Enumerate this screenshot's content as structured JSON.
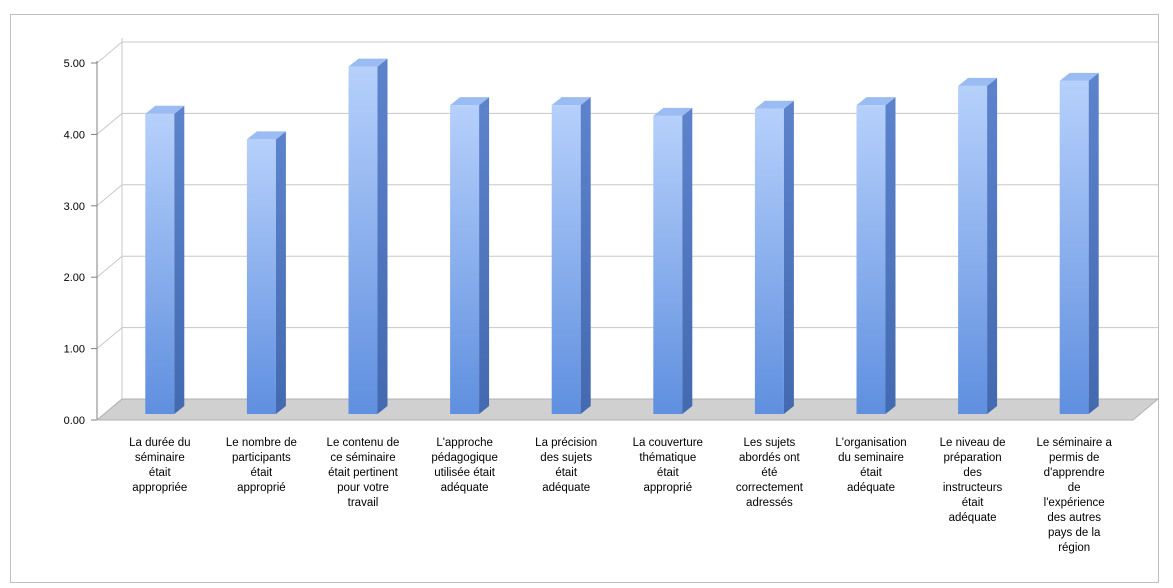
{
  "chart_data": {
    "type": "bar",
    "categories": [
      [
        "La durée du",
        "séminaire",
        "était",
        "appropriée"
      ],
      [
        "Le nombre de",
        "participants",
        "était",
        "approprié"
      ],
      [
        "Le contenu de",
        "ce séminaire",
        "était pertinent",
        "pour votre",
        "travail"
      ],
      [
        "L'approche",
        "pédagogique",
        "utilisée était",
        "adéquate"
      ],
      [
        "La précision",
        "des sujets",
        "était",
        "adéquate"
      ],
      [
        "La couverture",
        "thématique",
        "était",
        "approprié"
      ],
      [
        "Les sujets",
        "abordés ont",
        "été",
        "correctement",
        "adressés"
      ],
      [
        "L'organisation",
        "du seminaire",
        "était",
        "adéquate"
      ],
      [
        "Le niveau de",
        "préparation",
        "des",
        "instructeurs",
        "était",
        "adéquate"
      ],
      [
        "Le séminaire a",
        "permis de",
        "d'apprendre",
        "de",
        "l'expérience",
        "des autres",
        "pays de la",
        "région"
      ]
    ],
    "values": [
      4.29,
      3.93,
      4.95,
      4.41,
      4.41,
      4.26,
      4.36,
      4.41,
      4.68,
      4.75
    ],
    "ylim": [
      0,
      5
    ],
    "yticks": [
      "0.00",
      "1.00",
      "2.00",
      "3.00",
      "4.00",
      "5.00"
    ],
    "grid": true,
    "bar_style": "3d",
    "colors": {
      "bar_front_top": "#b6d0fb",
      "bar_front_bottom": "#5f8fdf",
      "bar_side": "#4369b0",
      "bar_top": "#9bbcf2",
      "floor": "#d0d0d0",
      "grid": "#c8c8c8"
    }
  }
}
